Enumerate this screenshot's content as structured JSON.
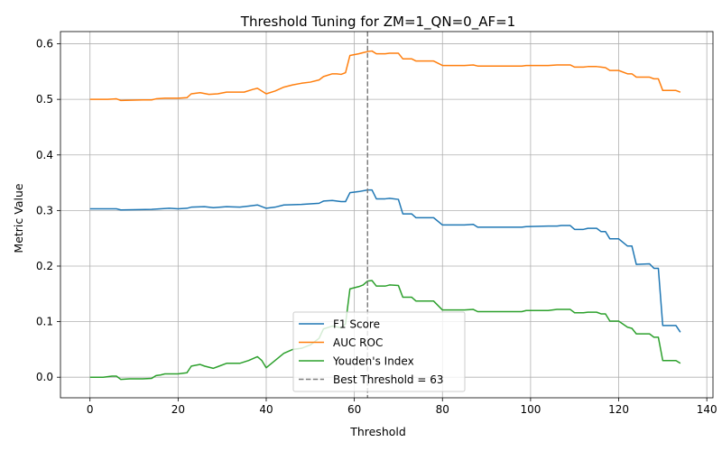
{
  "chart_data": {
    "type": "line",
    "title": "Threshold Tuning for ZM=1_QN=0_AF=1",
    "xlabel": "Threshold",
    "ylabel": "Metric Value",
    "xlim": [
      -6.7,
      141.4
    ],
    "ylim": [
      -0.037,
      0.622
    ],
    "xticks": [
      0,
      20,
      40,
      60,
      80,
      100,
      120,
      140
    ],
    "xtick_labels": [
      "0",
      "20",
      "40",
      "60",
      "80",
      "100",
      "120",
      "140"
    ],
    "yticks": [
      0.0,
      0.1,
      0.2,
      0.3,
      0.4,
      0.5,
      0.6
    ],
    "ytick_labels": [
      "0.0",
      "0.1",
      "0.2",
      "0.3",
      "0.4",
      "0.5",
      "0.6"
    ],
    "grid": true,
    "legend_position": "lower-center",
    "best_threshold": {
      "x": 63,
      "label": "Best Threshold = 63",
      "color": "#7f7f7f"
    },
    "series": [
      {
        "name": "F1 Score",
        "color": "#1f77b4",
        "points": [
          [
            0,
            0.303
          ],
          [
            6,
            0.303
          ],
          [
            7,
            0.301
          ],
          [
            14,
            0.302
          ],
          [
            16,
            0.303
          ],
          [
            18,
            0.304
          ],
          [
            20,
            0.303
          ],
          [
            22,
            0.304
          ],
          [
            23,
            0.306
          ],
          [
            26,
            0.307
          ],
          [
            28,
            0.305
          ],
          [
            31,
            0.307
          ],
          [
            34,
            0.306
          ],
          [
            36,
            0.308
          ],
          [
            38,
            0.31
          ],
          [
            40,
            0.304
          ],
          [
            42,
            0.306
          ],
          [
            44,
            0.31
          ],
          [
            48,
            0.311
          ],
          [
            50,
            0.312
          ],
          [
            52,
            0.313
          ],
          [
            53,
            0.317
          ],
          [
            55,
            0.318
          ],
          [
            57,
            0.316
          ],
          [
            58,
            0.316
          ],
          [
            59,
            0.332
          ],
          [
            61,
            0.334
          ],
          [
            63,
            0.337
          ],
          [
            64,
            0.337
          ],
          [
            65,
            0.321
          ],
          [
            67,
            0.321
          ],
          [
            68,
            0.322
          ],
          [
            70,
            0.32
          ],
          [
            71,
            0.294
          ],
          [
            73,
            0.294
          ],
          [
            74,
            0.287
          ],
          [
            78,
            0.287
          ],
          [
            80,
            0.274
          ],
          [
            85,
            0.274
          ],
          [
            87,
            0.275
          ],
          [
            88,
            0.27
          ],
          [
            96,
            0.27
          ],
          [
            98,
            0.27
          ],
          [
            99,
            0.271
          ],
          [
            104,
            0.272
          ],
          [
            106,
            0.272
          ],
          [
            107,
            0.273
          ],
          [
            109,
            0.273
          ],
          [
            110,
            0.266
          ],
          [
            112,
            0.266
          ],
          [
            113,
            0.268
          ],
          [
            115,
            0.268
          ],
          [
            116,
            0.262
          ],
          [
            117,
            0.262
          ],
          [
            118,
            0.249
          ],
          [
            120,
            0.249
          ],
          [
            122,
            0.236
          ],
          [
            123,
            0.236
          ],
          [
            124,
            0.203
          ],
          [
            127,
            0.204
          ],
          [
            128,
            0.196
          ],
          [
            129,
            0.196
          ],
          [
            130,
            0.093
          ],
          [
            133,
            0.093
          ],
          [
            134,
            0.081
          ]
        ]
      },
      {
        "name": "AUC ROC",
        "color": "#ff7f0e",
        "points": [
          [
            0,
            0.5
          ],
          [
            4,
            0.5
          ],
          [
            6,
            0.501
          ],
          [
            7,
            0.498
          ],
          [
            12,
            0.499
          ],
          [
            14,
            0.499
          ],
          [
            15,
            0.501
          ],
          [
            17,
            0.502
          ],
          [
            20,
            0.502
          ],
          [
            22,
            0.503
          ],
          [
            23,
            0.51
          ],
          [
            25,
            0.512
          ],
          [
            27,
            0.509
          ],
          [
            29,
            0.51
          ],
          [
            31,
            0.513
          ],
          [
            33,
            0.513
          ],
          [
            35,
            0.513
          ],
          [
            37,
            0.518
          ],
          [
            38,
            0.52
          ],
          [
            40,
            0.51
          ],
          [
            42,
            0.515
          ],
          [
            44,
            0.522
          ],
          [
            46,
            0.526
          ],
          [
            48,
            0.529
          ],
          [
            50,
            0.531
          ],
          [
            52,
            0.535
          ],
          [
            53,
            0.541
          ],
          [
            55,
            0.546
          ],
          [
            56,
            0.546
          ],
          [
            57,
            0.545
          ],
          [
            58,
            0.548
          ],
          [
            59,
            0.579
          ],
          [
            61,
            0.582
          ],
          [
            62,
            0.584
          ],
          [
            63,
            0.586
          ],
          [
            64,
            0.587
          ],
          [
            65,
            0.582
          ],
          [
            67,
            0.582
          ],
          [
            68,
            0.583
          ],
          [
            70,
            0.583
          ],
          [
            71,
            0.573
          ],
          [
            73,
            0.573
          ],
          [
            74,
            0.569
          ],
          [
            78,
            0.569
          ],
          [
            80,
            0.561
          ],
          [
            85,
            0.561
          ],
          [
            87,
            0.562
          ],
          [
            88,
            0.56
          ],
          [
            98,
            0.56
          ],
          [
            99,
            0.561
          ],
          [
            104,
            0.561
          ],
          [
            106,
            0.562
          ],
          [
            109,
            0.562
          ],
          [
            110,
            0.558
          ],
          [
            112,
            0.558
          ],
          [
            113,
            0.559
          ],
          [
            115,
            0.559
          ],
          [
            116,
            0.558
          ],
          [
            117,
            0.557
          ],
          [
            118,
            0.552
          ],
          [
            120,
            0.552
          ],
          [
            122,
            0.546
          ],
          [
            123,
            0.546
          ],
          [
            124,
            0.54
          ],
          [
            127,
            0.54
          ],
          [
            128,
            0.537
          ],
          [
            129,
            0.537
          ],
          [
            130,
            0.516
          ],
          [
            133,
            0.516
          ],
          [
            134,
            0.513
          ]
        ]
      },
      {
        "name": "Youden's Index",
        "color": "#2ca02c",
        "points": [
          [
            0,
            0.0
          ],
          [
            3,
            0.0
          ],
          [
            5,
            0.002
          ],
          [
            6,
            0.002
          ],
          [
            7,
            -0.004
          ],
          [
            9,
            -0.003
          ],
          [
            12,
            -0.003
          ],
          [
            14,
            -0.002
          ],
          [
            15,
            0.003
          ],
          [
            16,
            0.004
          ],
          [
            17,
            0.006
          ],
          [
            20,
            0.006
          ],
          [
            22,
            0.008
          ],
          [
            23,
            0.02
          ],
          [
            25,
            0.023
          ],
          [
            26,
            0.02
          ],
          [
            28,
            0.016
          ],
          [
            29,
            0.019
          ],
          [
            31,
            0.025
          ],
          [
            34,
            0.025
          ],
          [
            36,
            0.03
          ],
          [
            38,
            0.037
          ],
          [
            39,
            0.03
          ],
          [
            40,
            0.017
          ],
          [
            42,
            0.03
          ],
          [
            44,
            0.043
          ],
          [
            46,
            0.05
          ],
          [
            48,
            0.052
          ],
          [
            50,
            0.058
          ],
          [
            52,
            0.07
          ],
          [
            53,
            0.087
          ],
          [
            55,
            0.092
          ],
          [
            57,
            0.089
          ],
          [
            58,
            0.096
          ],
          [
            59,
            0.159
          ],
          [
            61,
            0.163
          ],
          [
            62,
            0.166
          ],
          [
            63,
            0.173
          ],
          [
            64,
            0.174
          ],
          [
            65,
            0.164
          ],
          [
            67,
            0.164
          ],
          [
            68,
            0.166
          ],
          [
            70,
            0.165
          ],
          [
            71,
            0.144
          ],
          [
            73,
            0.144
          ],
          [
            74,
            0.137
          ],
          [
            78,
            0.137
          ],
          [
            80,
            0.121
          ],
          [
            85,
            0.121
          ],
          [
            87,
            0.122
          ],
          [
            88,
            0.118
          ],
          [
            98,
            0.118
          ],
          [
            99,
            0.12
          ],
          [
            104,
            0.12
          ],
          [
            106,
            0.122
          ],
          [
            109,
            0.122
          ],
          [
            110,
            0.116
          ],
          [
            112,
            0.116
          ],
          [
            113,
            0.117
          ],
          [
            115,
            0.117
          ],
          [
            116,
            0.114
          ],
          [
            117,
            0.114
          ],
          [
            118,
            0.101
          ],
          [
            120,
            0.101
          ],
          [
            122,
            0.09
          ],
          [
            123,
            0.088
          ],
          [
            124,
            0.078
          ],
          [
            127,
            0.078
          ],
          [
            128,
            0.072
          ],
          [
            129,
            0.072
          ],
          [
            130,
            0.03
          ],
          [
            133,
            0.03
          ],
          [
            134,
            0.025
          ]
        ]
      }
    ]
  }
}
